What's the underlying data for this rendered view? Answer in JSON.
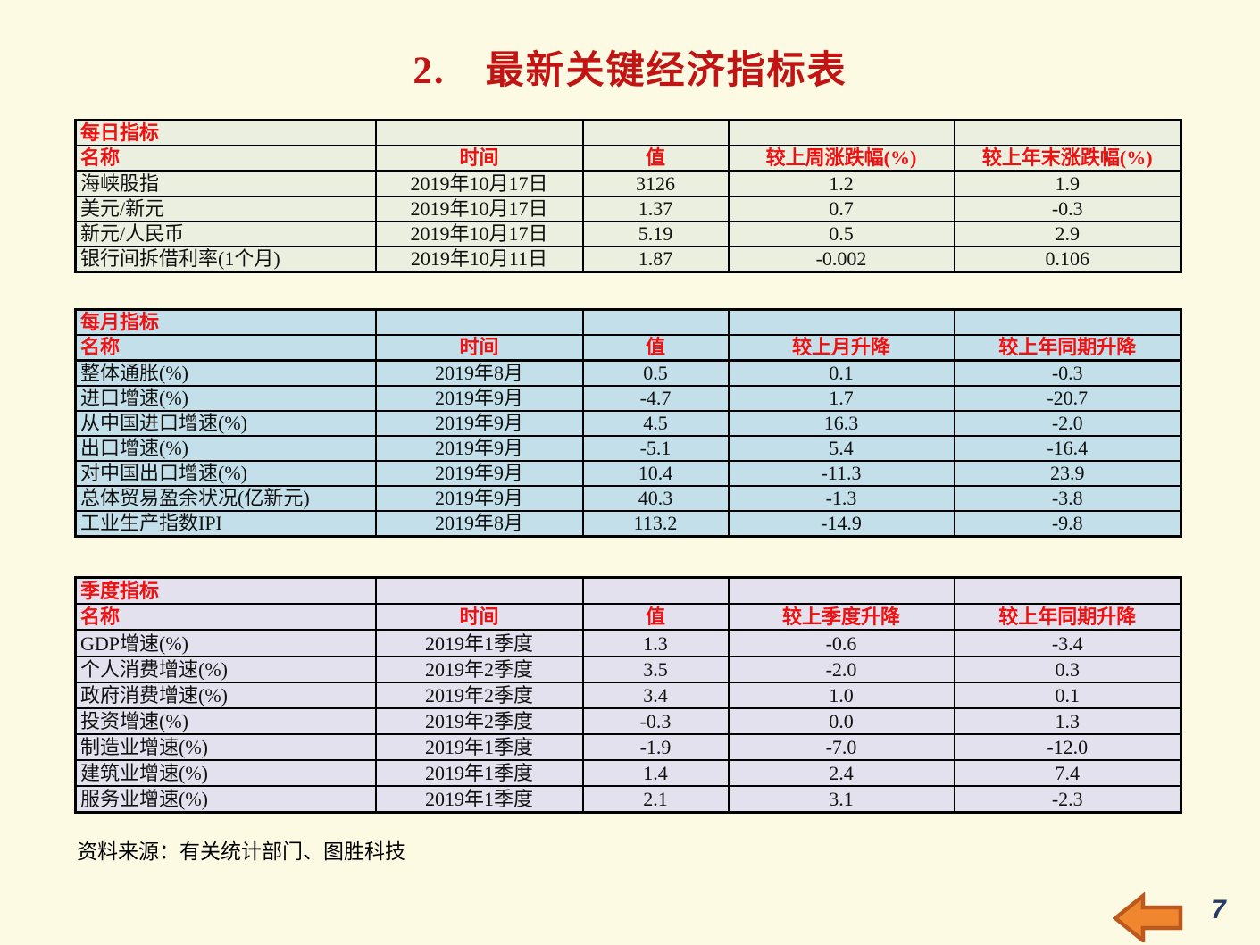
{
  "slide": {
    "title": "2.　最新关键经济指标表",
    "footer": "资料来源：有关统计部门、图胜科技",
    "page_number": "7",
    "back_arrow_icon": "left-block-arrow"
  },
  "colors": {
    "slide_bg": "#FCFAE3",
    "title_red": "#C31414",
    "accent_red": "#EE1111",
    "daily_bg": "#EBEFDF",
    "monthly_bg": "#C3E0EA",
    "quarterly_bg": "#E3E1ED",
    "arrow_fill": "#F0862E",
    "arrow_border": "#BC5A1D",
    "page_num": "#2A3A66"
  },
  "tables": [
    {
      "group_title": "每日指标",
      "bg": "#EBEFDF",
      "columns": [
        "名称",
        "时间",
        "值",
        "较上周涨跌幅(%)",
        "较上年末涨跌幅(%)"
      ],
      "rows": [
        [
          "海峡股指",
          "2019年10月17日",
          "3126",
          "1.2",
          "1.9"
        ],
        [
          "美元/新元",
          "2019年10月17日",
          "1.37",
          "0.7",
          "-0.3"
        ],
        [
          "新元/人民币",
          "2019年10月17日",
          "5.19",
          "0.5",
          "2.9"
        ],
        [
          "银行间拆借利率(1个月)",
          "2019年10月11日",
          "1.87",
          "-0.002",
          "0.106"
        ]
      ]
    },
    {
      "group_title": "每月指标",
      "bg": "#C3E0EA",
      "columns": [
        "名称",
        "时间",
        "值",
        "较上月升降",
        "较上年同期升降"
      ],
      "rows": [
        [
          "整体通胀(%)",
          "2019年8月",
          "0.5",
          "0.1",
          "-0.3"
        ],
        [
          "进口增速(%)",
          "2019年9月",
          "-4.7",
          "1.7",
          "-20.7"
        ],
        [
          "从中国进口增速(%)",
          "2019年9月",
          "4.5",
          "16.3",
          "-2.0"
        ],
        [
          "出口增速(%)",
          "2019年9月",
          "-5.1",
          "5.4",
          "-16.4"
        ],
        [
          "对中国出口增速(%)",
          "2019年9月",
          "10.4",
          "-11.3",
          "23.9"
        ],
        [
          "总体贸易盈余状况(亿新元)",
          "2019年9月",
          "40.3",
          "-1.3",
          "-3.8"
        ],
        [
          "工业生产指数IPI",
          "2019年8月",
          "113.2",
          "-14.9",
          "-9.8"
        ]
      ]
    },
    {
      "group_title": "季度指标",
      "bg": "#E3E1ED",
      "columns": [
        "名称",
        "时间",
        "值",
        "较上季度升降",
        "较上年同期升降"
      ],
      "rows": [
        [
          "GDP增速(%)",
          "2019年1季度",
          "1.3",
          "-0.6",
          "-3.4"
        ],
        [
          "个人消费增速(%)",
          "2019年2季度",
          "3.5",
          "-2.0",
          "0.3"
        ],
        [
          "政府消费增速(%)",
          "2019年2季度",
          "3.4",
          "1.0",
          "0.1"
        ],
        [
          "投资增速(%)",
          "2019年2季度",
          "-0.3",
          "0.0",
          "1.3"
        ],
        [
          "制造业增速(%)",
          "2019年1季度",
          "-1.9",
          "-7.0",
          "-12.0"
        ],
        [
          "建筑业增速(%)",
          "2019年1季度",
          "1.4",
          "2.4",
          "7.4"
        ],
        [
          "服务业增速(%)",
          "2019年1季度",
          "2.1",
          "3.1",
          "-2.3"
        ]
      ]
    }
  ]
}
